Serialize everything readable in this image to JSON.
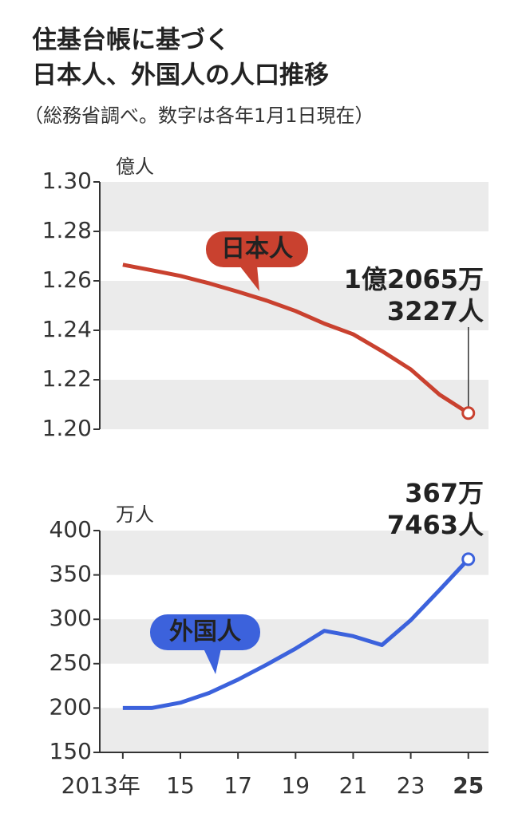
{
  "title": [
    "住基台帳に基づく",
    "日本人、外国人の人口推移"
  ],
  "subtitle": "（総務省調べ。数字は各年1月1日現在）",
  "chart_data": [
    {
      "type": "line",
      "y_label": "億人",
      "x": [
        2013,
        2014,
        2015,
        2016,
        2017,
        2018,
        2019,
        2020,
        2021,
        2022,
        2023,
        2024,
        2025
      ],
      "series": [
        {
          "name": "日本人",
          "color": "#c9412f",
          "values": [
            1.2665,
            1.2643,
            1.262,
            1.259,
            1.2556,
            1.252,
            1.2478,
            1.2427,
            1.2384,
            1.2316,
            1.2242,
            1.214,
            1.20653227
          ],
          "value_labels": [
            null,
            null,
            null,
            null,
            null,
            null,
            null,
            null,
            null,
            null,
            null,
            null,
            [
              "1億2065万",
              "3227人"
            ]
          ]
        }
      ],
      "xlim": [
        2012.2,
        2025.7
      ],
      "ylim": [
        1.2,
        1.3
      ],
      "yticks": [
        {
          "value": 1.2,
          "label": "1.20"
        },
        1.22,
        1.24,
        1.26,
        1.28,
        {
          "value": 1.3,
          "label": "1.30"
        }
      ],
      "grid": "bands"
    },
    {
      "type": "line",
      "y_label": "万人",
      "x": [
        2013,
        2014,
        2015,
        2016,
        2017,
        2018,
        2019,
        2020,
        2021,
        2022,
        2023,
        2024,
        2025
      ],
      "series": [
        {
          "name": "外国人",
          "color": "#3c62dc",
          "values": [
            200,
            200,
            206,
            217,
            232,
            249,
            267,
            287,
            281,
            271,
            299,
            333,
            367.7463
          ],
          "value_labels": [
            null,
            null,
            null,
            null,
            null,
            null,
            null,
            null,
            null,
            null,
            null,
            null,
            [
              "367万",
              "7463人"
            ]
          ]
        }
      ],
      "xlim": [
        2012.2,
        2025.7
      ],
      "ylim": [
        150,
        400
      ],
      "yticks": [
        150,
        200,
        250,
        300,
        350,
        400
      ],
      "xticks": [
        {
          "value": 2013,
          "label": "2013年"
        },
        {
          "value": 2015,
          "label": "15"
        },
        {
          "value": 2017,
          "label": "17"
        },
        {
          "value": 2019,
          "label": "19"
        },
        {
          "value": 2021,
          "label": "21"
        },
        {
          "value": 2023,
          "label": "23"
        },
        {
          "value": 2025,
          "label": "25"
        }
      ],
      "grid": "bands"
    }
  ]
}
